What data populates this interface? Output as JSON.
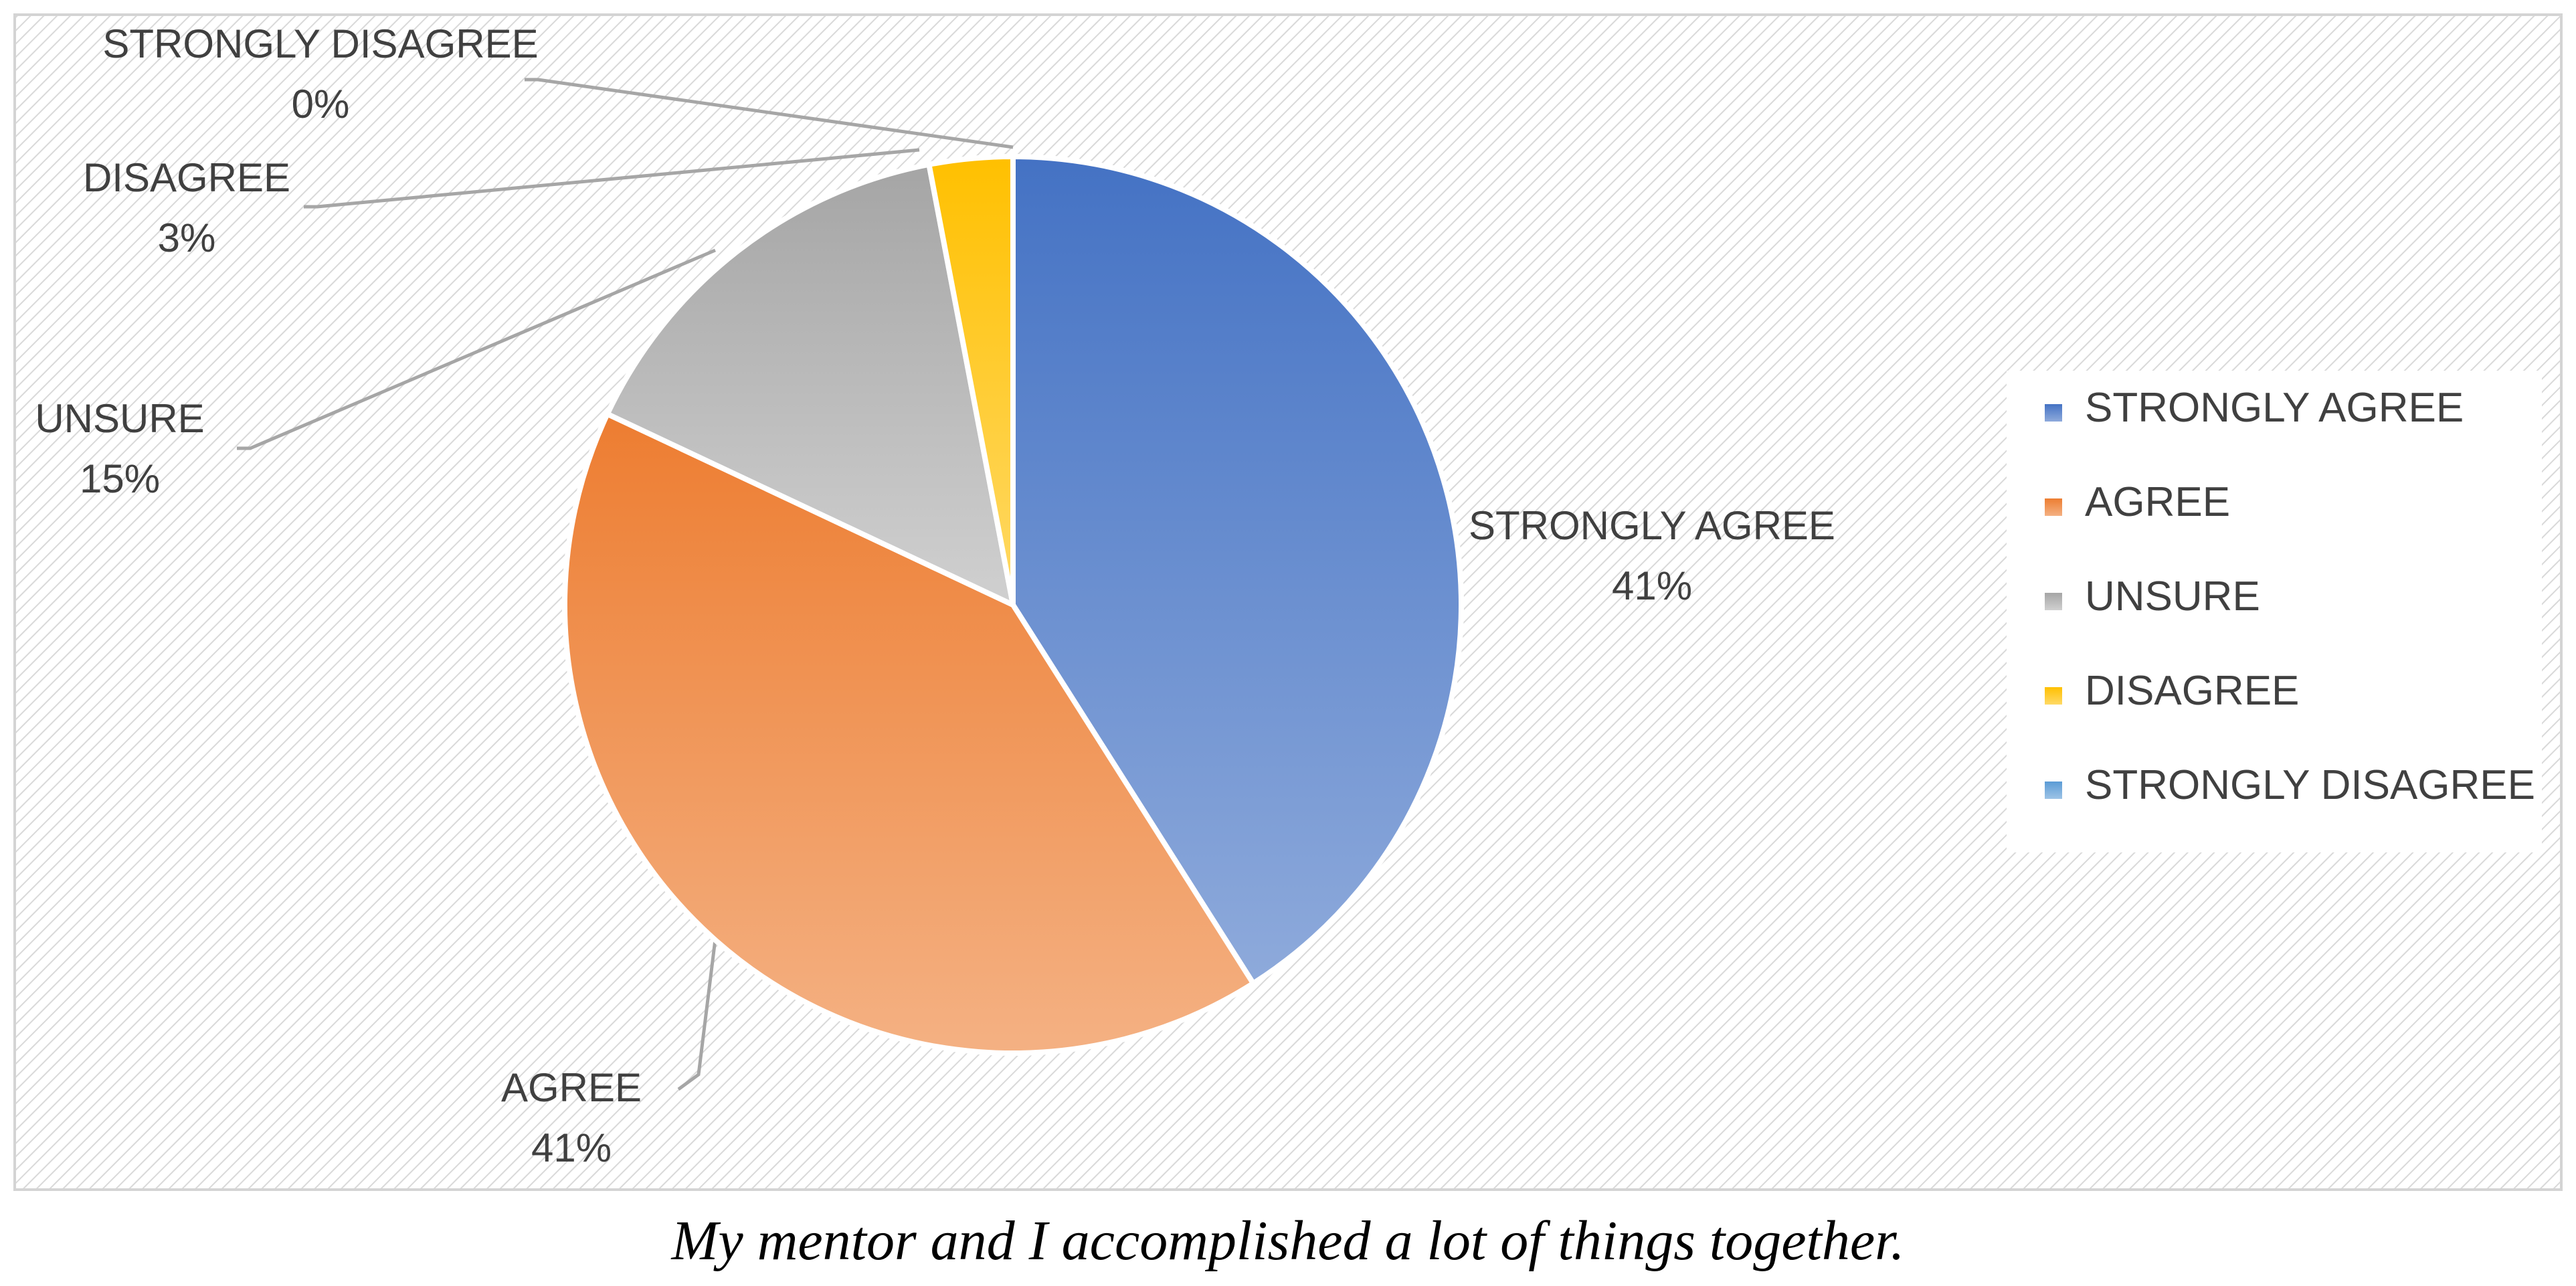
{
  "caption": "My mentor and I accomplished a lot of things together.",
  "chart_data": {
    "type": "pie",
    "categories": [
      "STRONGLY AGREE",
      "AGREE",
      "UNSURE",
      "DISAGREE",
      "STRONGLY DISAGREE"
    ],
    "values": [
      41,
      41,
      15,
      3,
      0
    ],
    "data_labels": [
      {
        "category": "STRONGLY AGREE",
        "percent": "41%"
      },
      {
        "category": "AGREE",
        "percent": "41%"
      },
      {
        "category": "UNSURE",
        "percent": "15%"
      },
      {
        "category": "DISAGREE",
        "percent": "3%"
      },
      {
        "category": "STRONGLY DISAGREE",
        "percent": "0%"
      }
    ],
    "colors": [
      "#4472C4",
      "#ED7D31",
      "#A5A5A5",
      "#FFC000",
      "#5B9BD5"
    ],
    "legend": {
      "placement": "right",
      "entries": [
        "STRONGLY AGREE",
        "AGREE",
        "UNSURE",
        "DISAGREE",
        "STRONGLY DISAGREE"
      ]
    },
    "background": "diagonal-hatch"
  }
}
